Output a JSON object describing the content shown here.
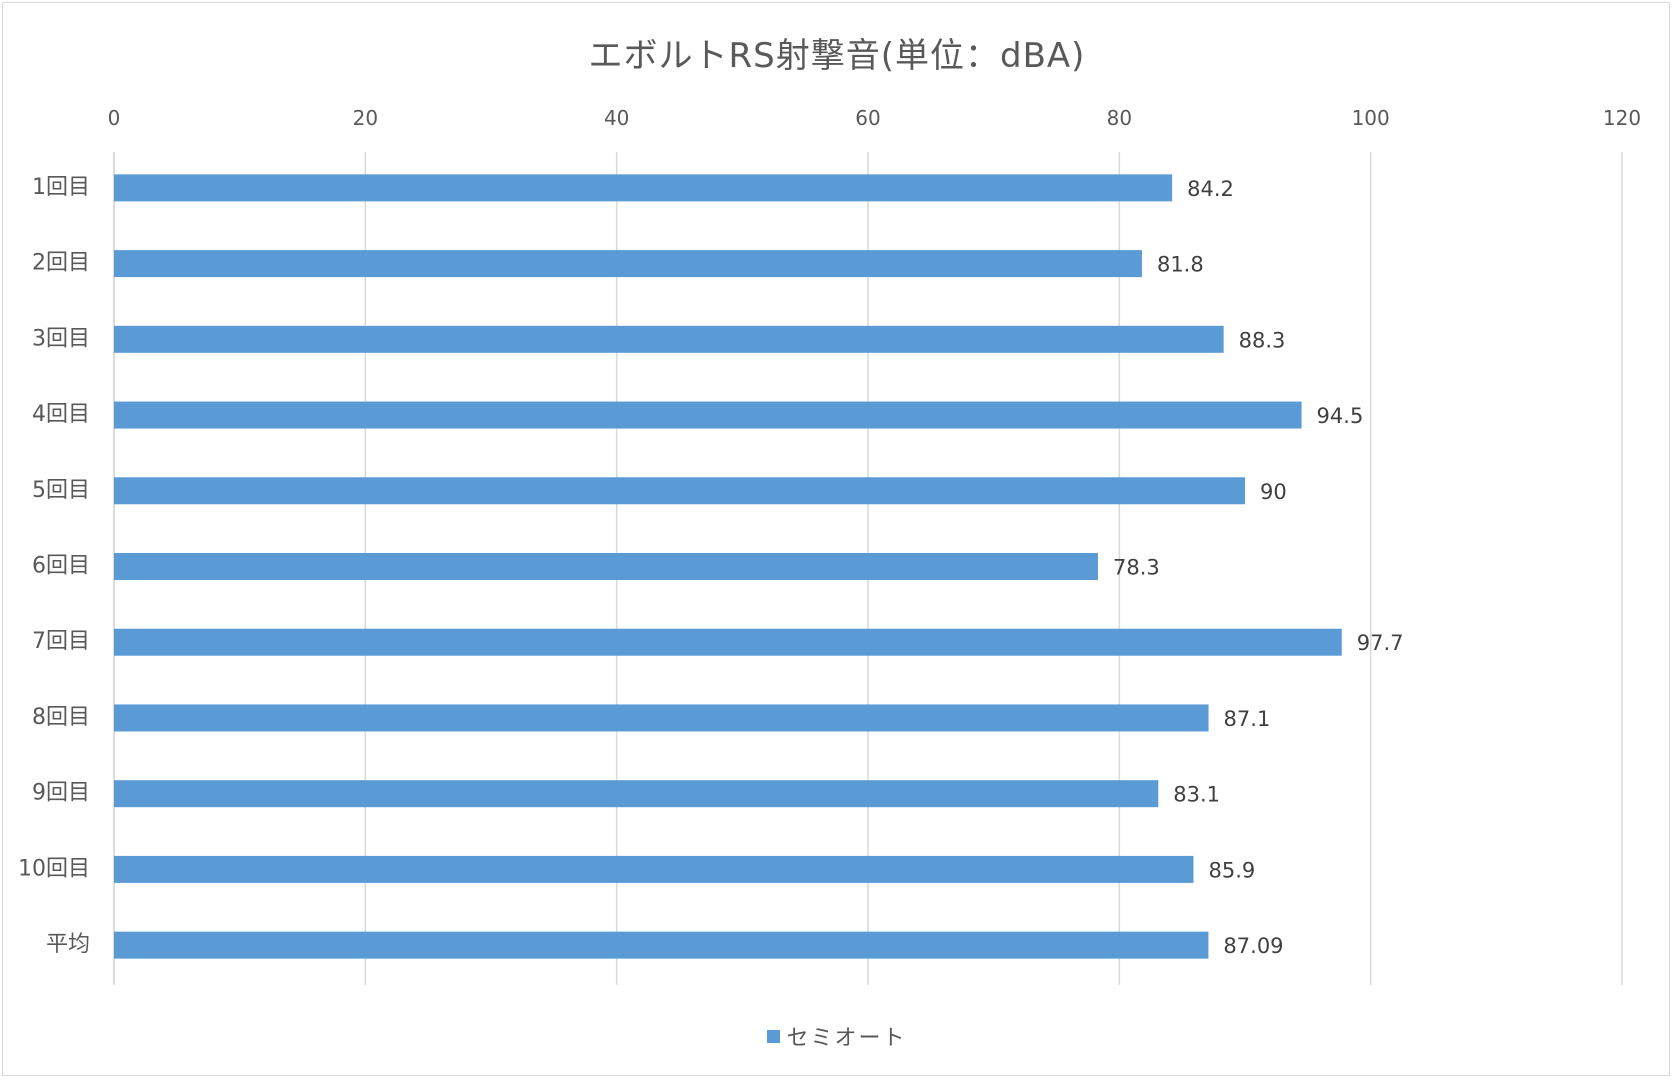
{
  "chart_data": {
    "type": "bar",
    "orientation": "horizontal",
    "title": "エボルトRS射撃音(単位：dBA)",
    "categories": [
      "1回目",
      "2回目",
      "3回目",
      "4回目",
      "5回目",
      "6回目",
      "7回目",
      "8回目",
      "9回目",
      "10回目",
      "平均"
    ],
    "series": [
      {
        "name": "セミオート",
        "values": [
          84.2,
          81.8,
          88.3,
          94.5,
          90,
          78.3,
          97.7,
          87.1,
          83.1,
          85.9,
          87.09
        ],
        "color": "#5b9bd5"
      }
    ],
    "value_axis": {
      "position": "top",
      "range": [
        0,
        120
      ],
      "ticks": [
        "0",
        "20",
        "40",
        "60",
        "80",
        "100",
        "120"
      ]
    },
    "data_labels": [
      "84.2",
      "81.8",
      "88.3",
      "94.5",
      "90",
      "78.3",
      "97.7",
      "87.1",
      "83.1",
      "85.9",
      "87.09"
    ],
    "grid": "vertical",
    "legend": {
      "placement": "bottom",
      "label": "セミオート"
    }
  }
}
